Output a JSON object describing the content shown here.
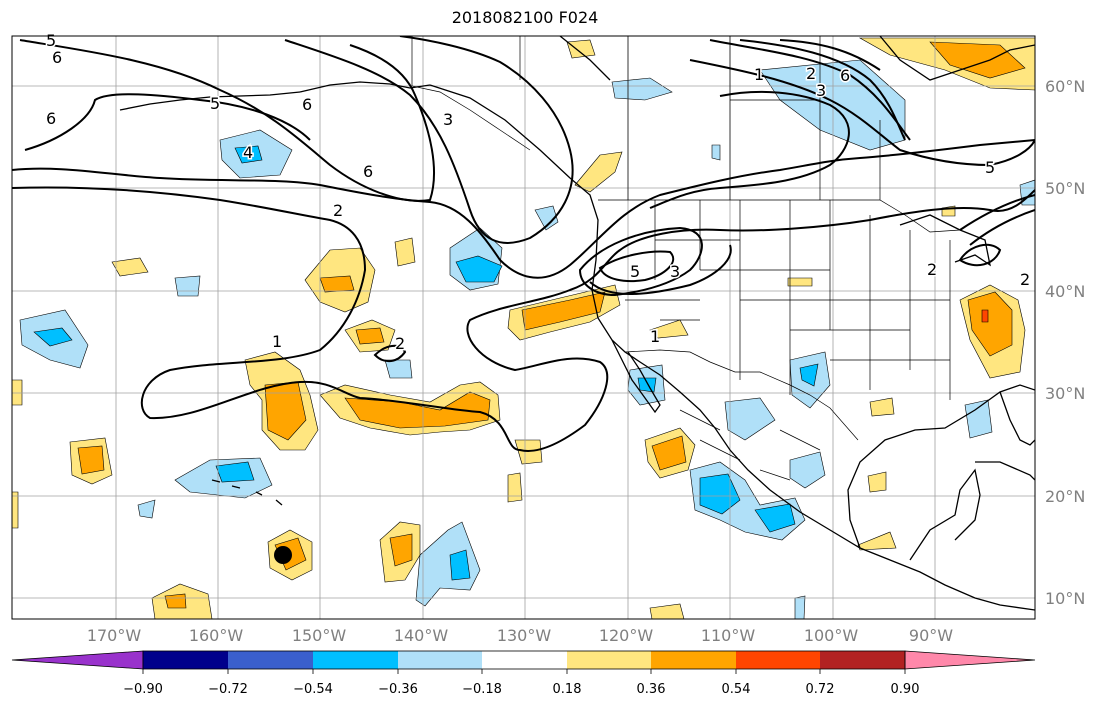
{
  "map": {
    "title": "2018082100 F024",
    "lat_labels": [
      "60°N",
      "50°N",
      "40°N",
      "30°N",
      "20°N",
      "10°N"
    ],
    "lon_labels": [
      "170°W",
      "160°W",
      "150°W",
      "140°W",
      "130°W",
      "120°W",
      "110°W",
      "100°W",
      "90°W"
    ],
    "contour_labels": [
      "5",
      "6",
      "6",
      "5",
      "6",
      "6",
      "4",
      "2",
      "1",
      "2",
      "3",
      "5",
      "3",
      "1",
      "2",
      "1",
      "3",
      "6",
      "5",
      "2",
      "2"
    ],
    "colors": {
      "background": "#ffffff",
      "contour": "#000000",
      "grid": "#a0a0a0",
      "coast": "#000000",
      "land_border": "#000000",
      "axis_label": "#808080"
    }
  },
  "colorbar": {
    "tick_labels": [
      "−0.90",
      "−0.72",
      "−0.54",
      "−0.36",
      "−0.18",
      "0.18",
      "0.36",
      "0.54",
      "0.72",
      "0.90"
    ],
    "colors": [
      "#9932cc",
      "#00008b",
      "#3a5fcd",
      "#00bfff",
      "#b0e0f8",
      "#ffffff",
      "#ffe680",
      "#ffa500",
      "#ff4500",
      "#b22222",
      "#ff88aa"
    ],
    "extend": "both"
  }
}
